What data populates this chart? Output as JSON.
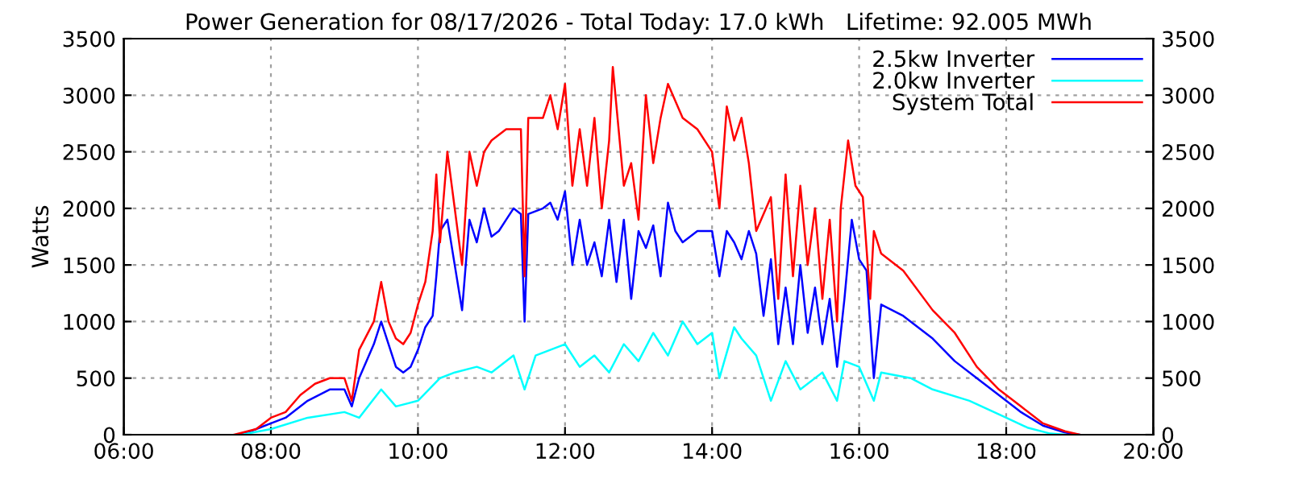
{
  "chart_data": {
    "type": "line",
    "title": "Power Generation for 08/17/2026 - Total Today: 17.0 kWh   Lifetime: 92.005 MWh",
    "ylabel": "Watts",
    "xlim": [
      6,
      20
    ],
    "xticks": [
      {
        "value": 6,
        "label": "06:00"
      },
      {
        "value": 8,
        "label": "08:00"
      },
      {
        "value": 10,
        "label": "10:00"
      },
      {
        "value": 12,
        "label": "12:00"
      },
      {
        "value": 14,
        "label": "14:00"
      },
      {
        "value": 16,
        "label": "16:00"
      },
      {
        "value": 18,
        "label": "18:00"
      },
      {
        "value": 20,
        "label": "20:00"
      }
    ],
    "ylim": [
      0,
      3500
    ],
    "yticks": [
      0,
      500,
      1000,
      1500,
      2000,
      2500,
      3000,
      3500
    ],
    "y2lim": [
      0,
      3500
    ],
    "y2ticks": [
      0,
      500,
      1000,
      1500,
      2000,
      2500,
      3000,
      3500
    ],
    "grid": true,
    "legend": "top right",
    "line_style": "solid",
    "marker": "none",
    "series": [
      {
        "name": "2.5kw Inverter",
        "color": "#0000ff",
        "x": [
          7.6,
          7.8,
          8.0,
          8.2,
          8.5,
          8.8,
          9.0,
          9.1,
          9.2,
          9.4,
          9.5,
          9.6,
          9.7,
          9.8,
          9.9,
          10.0,
          10.1,
          10.2,
          10.25,
          10.3,
          10.4,
          10.5,
          10.6,
          10.7,
          10.8,
          10.9,
          11.0,
          11.1,
          11.2,
          11.3,
          11.4,
          11.45,
          11.5,
          11.7,
          11.8,
          11.9,
          12.0,
          12.1,
          12.2,
          12.3,
          12.4,
          12.5,
          12.6,
          12.7,
          12.8,
          12.9,
          13.0,
          13.1,
          13.2,
          13.3,
          13.4,
          13.5,
          13.6,
          13.8,
          14.0,
          14.1,
          14.2,
          14.3,
          14.4,
          14.5,
          14.6,
          14.7,
          14.8,
          14.9,
          15.0,
          15.1,
          15.2,
          15.3,
          15.4,
          15.5,
          15.6,
          15.7,
          15.8,
          15.9,
          16.0,
          16.1,
          16.2,
          16.3,
          16.6,
          17.0,
          17.3,
          17.6,
          17.9,
          18.2,
          18.5,
          18.8,
          19.0
        ],
        "values": [
          0,
          50,
          100,
          150,
          300,
          400,
          400,
          250,
          500,
          800,
          1000,
          800,
          600,
          550,
          600,
          750,
          950,
          1050,
          1400,
          1800,
          1900,
          1500,
          1100,
          1900,
          1700,
          2000,
          1750,
          1800,
          1900,
          2000,
          1950,
          1000,
          1950,
          2000,
          2050,
          1900,
          2150,
          1500,
          1900,
          1500,
          1700,
          1400,
          1900,
          1350,
          1900,
          1200,
          1800,
          1650,
          1850,
          1400,
          2050,
          1800,
          1700,
          1800,
          1800,
          1400,
          1800,
          1700,
          1550,
          1800,
          1600,
          1050,
          1550,
          800,
          1300,
          800,
          1500,
          900,
          1300,
          800,
          1200,
          600,
          1200,
          1900,
          1550,
          1450,
          500,
          1150,
          1050,
          850,
          650,
          500,
          350,
          200,
          80,
          20,
          0
        ]
      },
      {
        "name": "2.0kw Inverter",
        "color": "#00ffff",
        "x": [
          7.6,
          8.0,
          8.5,
          9.0,
          9.2,
          9.5,
          9.7,
          10.0,
          10.3,
          10.5,
          10.8,
          11.0,
          11.3,
          11.45,
          11.6,
          11.8,
          12.0,
          12.2,
          12.4,
          12.6,
          12.8,
          13.0,
          13.2,
          13.4,
          13.6,
          13.8,
          14.0,
          14.1,
          14.3,
          14.4,
          14.6,
          14.8,
          15.0,
          15.2,
          15.5,
          15.7,
          15.8,
          16.0,
          16.2,
          16.3,
          16.7,
          17.0,
          17.5,
          18.0,
          18.3,
          18.6,
          18.8
        ],
        "values": [
          0,
          50,
          150,
          200,
          150,
          400,
          250,
          300,
          500,
          550,
          600,
          550,
          700,
          400,
          700,
          750,
          800,
          600,
          700,
          550,
          800,
          650,
          900,
          700,
          1000,
          800,
          900,
          500,
          950,
          850,
          700,
          300,
          650,
          400,
          550,
          300,
          650,
          600,
          300,
          550,
          500,
          400,
          300,
          150,
          60,
          10,
          0
        ]
      },
      {
        "name": "System Total",
        "color": "#ff0000",
        "x": [
          7.5,
          7.8,
          8.0,
          8.2,
          8.4,
          8.6,
          8.8,
          9.0,
          9.1,
          9.2,
          9.4,
          9.5,
          9.6,
          9.7,
          9.8,
          9.9,
          10.0,
          10.1,
          10.2,
          10.25,
          10.3,
          10.4,
          10.5,
          10.6,
          10.7,
          10.8,
          10.9,
          11.0,
          11.2,
          11.4,
          11.45,
          11.5,
          11.7,
          11.8,
          11.9,
          12.0,
          12.1,
          12.2,
          12.3,
          12.4,
          12.5,
          12.6,
          12.65,
          12.8,
          12.9,
          13.0,
          13.1,
          13.2,
          13.3,
          13.4,
          13.6,
          13.8,
          14.0,
          14.1,
          14.2,
          14.3,
          14.4,
          14.5,
          14.6,
          14.8,
          14.9,
          15.0,
          15.1,
          15.2,
          15.3,
          15.4,
          15.5,
          15.6,
          15.7,
          15.75,
          15.85,
          15.95,
          16.05,
          16.15,
          16.2,
          16.3,
          16.6,
          17.0,
          17.3,
          17.6,
          17.9,
          18.2,
          18.5,
          18.8,
          19.0
        ],
        "values": [
          0,
          50,
          150,
          200,
          350,
          450,
          500,
          500,
          300,
          750,
          1000,
          1350,
          1000,
          850,
          800,
          900,
          1150,
          1350,
          1800,
          2300,
          1700,
          2500,
          2000,
          1500,
          2500,
          2200,
          2500,
          2600,
          2700,
          2700,
          1400,
          2800,
          2800,
          3000,
          2700,
          3100,
          2200,
          2700,
          2200,
          2800,
          2000,
          2600,
          3250,
          2200,
          2400,
          1900,
          3000,
          2400,
          2800,
          3100,
          2800,
          2700,
          2500,
          2000,
          2900,
          2600,
          2800,
          2400,
          1800,
          2100,
          1200,
          2300,
          1400,
          2200,
          1500,
          2000,
          1200,
          1900,
          1000,
          2000,
          2600,
          2200,
          2100,
          1200,
          1800,
          1600,
          1450,
          1100,
          900,
          600,
          400,
          250,
          100,
          30,
          0
        ]
      }
    ]
  }
}
